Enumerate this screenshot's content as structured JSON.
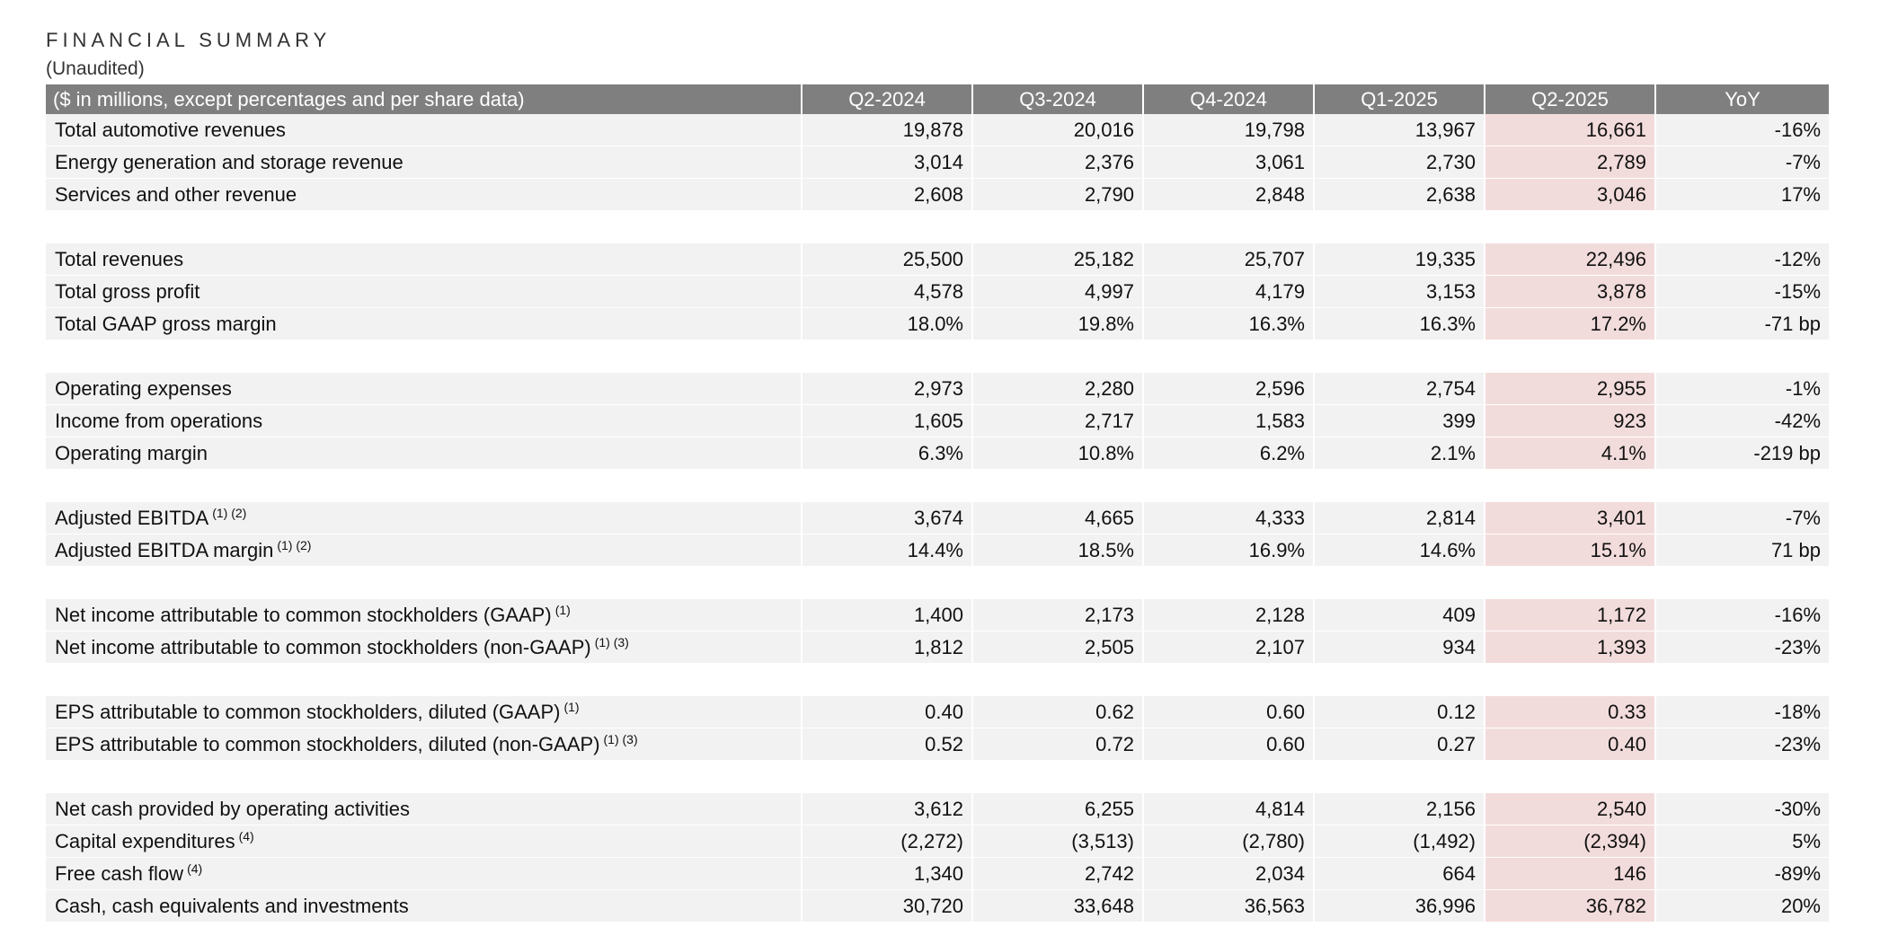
{
  "header": {
    "title": "FINANCIAL SUMMARY",
    "subtitle": "(Unaudited)"
  },
  "table": {
    "label_header": "($ in millions, except percentages and per share data)",
    "columns": [
      "Q2-2024",
      "Q3-2024",
      "Q4-2024",
      "Q1-2025",
      "Q2-2025",
      "YoY"
    ],
    "highlight_color": "#f2dcdb",
    "header_color": "#7f7f7f",
    "groups": [
      [
        {
          "label": "Total automotive revenues",
          "note": "",
          "values": [
            "19,878",
            "20,016",
            "19,798",
            "13,967",
            "16,661",
            "-16%"
          ]
        },
        {
          "label": "Energy generation and storage revenue",
          "note": "",
          "values": [
            "3,014",
            "2,376",
            "3,061",
            "2,730",
            "2,789",
            "-7%"
          ]
        },
        {
          "label": "Services and other revenue",
          "note": "",
          "values": [
            "2,608",
            "2,790",
            "2,848",
            "2,638",
            "3,046",
            "17%"
          ]
        }
      ],
      [
        {
          "label": "Total revenues",
          "note": "",
          "values": [
            "25,500",
            "25,182",
            "25,707",
            "19,335",
            "22,496",
            "-12%"
          ]
        },
        {
          "label": "Total gross profit",
          "note": "",
          "values": [
            "4,578",
            "4,997",
            "4,179",
            "3,153",
            "3,878",
            "-15%"
          ]
        },
        {
          "label": "Total GAAP gross margin",
          "note": "",
          "values": [
            "18.0%",
            "19.8%",
            "16.3%",
            "16.3%",
            "17.2%",
            "-71 bp"
          ]
        }
      ],
      [
        {
          "label": "Operating expenses",
          "note": "",
          "values": [
            "2,973",
            "2,280",
            "2,596",
            "2,754",
            "2,955",
            "-1%"
          ]
        },
        {
          "label": "Income from operations",
          "note": "",
          "values": [
            "1,605",
            "2,717",
            "1,583",
            "399",
            "923",
            "-42%"
          ]
        },
        {
          "label": "Operating margin",
          "note": "",
          "values": [
            "6.3%",
            "10.8%",
            "6.2%",
            "2.1%",
            "4.1%",
            "-219 bp"
          ]
        }
      ],
      [
        {
          "label": "Adjusted EBITDA",
          "note": "(1) (2)",
          "values": [
            "3,674",
            "4,665",
            "4,333",
            "2,814",
            "3,401",
            "-7%"
          ]
        },
        {
          "label": "Adjusted EBITDA margin",
          "note": "(1) (2)",
          "values": [
            "14.4%",
            "18.5%",
            "16.9%",
            "14.6%",
            "15.1%",
            "71 bp"
          ]
        }
      ],
      [
        {
          "label": "Net income attributable to common stockholders (GAAP)",
          "note": "(1)",
          "values": [
            "1,400",
            "2,173",
            "2,128",
            "409",
            "1,172",
            "-16%"
          ]
        },
        {
          "label": "Net income attributable to common stockholders (non-GAAP)",
          "note": "(1) (3)",
          "values": [
            "1,812",
            "2,505",
            "2,107",
            "934",
            "1,393",
            "-23%"
          ]
        }
      ],
      [
        {
          "label": "EPS attributable to common stockholders, diluted (GAAP)",
          "note": "(1)",
          "values": [
            "0.40",
            "0.62",
            "0.60",
            "0.12",
            "0.33",
            "-18%"
          ]
        },
        {
          "label": "EPS attributable to common stockholders, diluted (non-GAAP)",
          "note": "(1) (3)",
          "values": [
            "0.52",
            "0.72",
            "0.60",
            "0.27",
            "0.40",
            "-23%"
          ]
        }
      ],
      [
        {
          "label": "Net cash provided by operating activities",
          "note": "",
          "values": [
            "3,612",
            "6,255",
            "4,814",
            "2,156",
            "2,540",
            "-30%"
          ]
        },
        {
          "label": "Capital expenditures",
          "note": "(4)",
          "values": [
            "(2,272)",
            "(3,513)",
            "(2,780)",
            "(1,492)",
            "(2,394)",
            "5%"
          ]
        },
        {
          "label": "Free cash flow",
          "note": "(4)",
          "values": [
            "1,340",
            "2,742",
            "2,034",
            "664",
            "146",
            "-89%"
          ]
        },
        {
          "label": "Cash, cash equivalents and investments",
          "note": "",
          "values": [
            "30,720",
            "33,648",
            "36,563",
            "36,996",
            "36,782",
            "20%"
          ]
        }
      ]
    ]
  }
}
